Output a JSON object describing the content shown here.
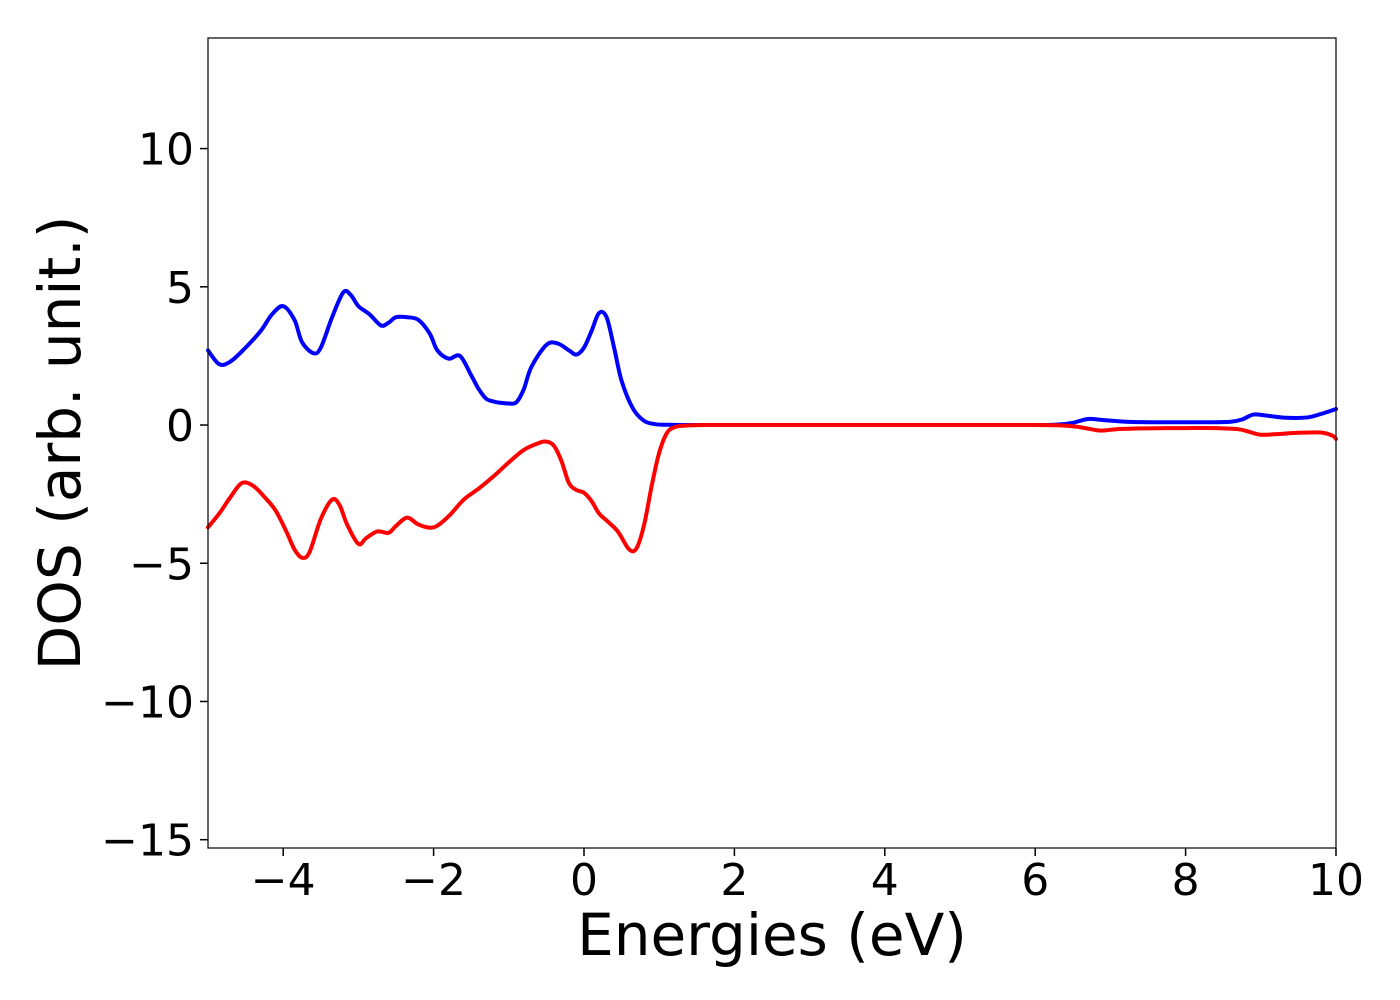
{
  "chart_data": {
    "type": "line",
    "title": "",
    "xlabel": "Energies (eV)",
    "ylabel": "DOS (arb. unit.)",
    "xlim": [
      -5,
      10
    ],
    "ylim": [
      -15.3,
      14
    ],
    "xticks": [
      -4,
      -2,
      0,
      2,
      4,
      6,
      8,
      10
    ],
    "xtick_labels": [
      "−4",
      "−2",
      "0",
      "2",
      "4",
      "6",
      "8",
      "10"
    ],
    "yticks": [
      -15,
      -10,
      -5,
      0,
      5,
      10
    ],
    "ytick_labels": [
      "−15",
      "−10",
      "−5",
      "0",
      "5",
      "10"
    ],
    "grid": false,
    "legend": false,
    "series": [
      {
        "color": "#0000ff",
        "x": [
          -5.0,
          -4.85,
          -4.7,
          -4.5,
          -4.3,
          -4.15,
          -4.0,
          -3.85,
          -3.75,
          -3.6,
          -3.5,
          -3.35,
          -3.2,
          -3.1,
          -3.0,
          -2.85,
          -2.7,
          -2.6,
          -2.5,
          -2.35,
          -2.2,
          -2.05,
          -1.95,
          -1.8,
          -1.65,
          -1.5,
          -1.4,
          -1.3,
          -1.2,
          -1.1,
          -1.0,
          -0.9,
          -0.8,
          -0.7,
          -0.5,
          -0.35,
          -0.2,
          -0.1,
          0.0,
          0.1,
          0.2,
          0.3,
          0.4,
          0.5,
          0.65,
          0.8,
          0.95,
          1.1,
          1.3,
          1.6,
          2.0,
          3.0,
          4.0,
          5.0,
          6.0,
          6.3,
          6.5,
          6.7,
          6.9,
          7.2,
          7.6,
          8.0,
          8.3,
          8.6,
          8.75,
          8.9,
          9.05,
          9.3,
          9.6,
          9.8,
          10.0
        ],
        "y": [
          2.7,
          2.2,
          2.3,
          2.8,
          3.4,
          4.0,
          4.3,
          3.8,
          3.0,
          2.6,
          2.8,
          3.9,
          4.8,
          4.7,
          4.3,
          4.0,
          3.6,
          3.7,
          3.9,
          3.9,
          3.8,
          3.3,
          2.7,
          2.4,
          2.5,
          1.8,
          1.3,
          0.95,
          0.85,
          0.8,
          0.78,
          0.82,
          1.3,
          2.1,
          2.9,
          2.95,
          2.7,
          2.55,
          2.8,
          3.4,
          4.05,
          3.9,
          2.8,
          1.6,
          0.6,
          0.15,
          0.03,
          0.01,
          0.0,
          0.0,
          0.0,
          0.0,
          0.0,
          0.0,
          0.0,
          0.02,
          0.08,
          0.22,
          0.18,
          0.12,
          0.1,
          0.1,
          0.1,
          0.12,
          0.2,
          0.38,
          0.35,
          0.27,
          0.27,
          0.4,
          0.58
        ]
      },
      {
        "color": "#ff0000",
        "x": [
          -5.0,
          -4.85,
          -4.7,
          -4.55,
          -4.4,
          -4.25,
          -4.1,
          -3.95,
          -3.85,
          -3.75,
          -3.65,
          -3.5,
          -3.35,
          -3.25,
          -3.15,
          -3.0,
          -2.9,
          -2.75,
          -2.6,
          -2.5,
          -2.35,
          -2.2,
          -2.0,
          -1.8,
          -1.6,
          -1.4,
          -1.2,
          -1.0,
          -0.8,
          -0.6,
          -0.5,
          -0.4,
          -0.3,
          -0.2,
          -0.1,
          0.0,
          0.1,
          0.2,
          0.3,
          0.45,
          0.6,
          0.7,
          0.8,
          0.9,
          1.0,
          1.1,
          1.2,
          1.35,
          1.6,
          2.0,
          3.0,
          4.0,
          5.0,
          6.0,
          6.4,
          6.6,
          6.8,
          6.9,
          7.1,
          7.5,
          8.0,
          8.4,
          8.7,
          8.85,
          9.0,
          9.2,
          9.5,
          9.8,
          9.95,
          10.0
        ],
        "y": [
          -3.7,
          -3.2,
          -2.6,
          -2.1,
          -2.2,
          -2.6,
          -3.1,
          -3.9,
          -4.5,
          -4.8,
          -4.6,
          -3.4,
          -2.7,
          -2.9,
          -3.6,
          -4.3,
          -4.1,
          -3.85,
          -3.9,
          -3.65,
          -3.35,
          -3.6,
          -3.7,
          -3.3,
          -2.7,
          -2.3,
          -1.85,
          -1.35,
          -0.9,
          -0.65,
          -0.6,
          -0.75,
          -1.3,
          -2.1,
          -2.35,
          -2.45,
          -2.75,
          -3.2,
          -3.45,
          -3.85,
          -4.5,
          -4.45,
          -3.6,
          -2.2,
          -1.0,
          -0.3,
          -0.08,
          -0.02,
          0.0,
          0.0,
          0.0,
          0.0,
          0.0,
          0.0,
          -0.02,
          -0.08,
          -0.18,
          -0.2,
          -0.15,
          -0.12,
          -0.11,
          -0.11,
          -0.15,
          -0.25,
          -0.35,
          -0.33,
          -0.28,
          -0.27,
          -0.38,
          -0.5
        ]
      }
    ]
  }
}
